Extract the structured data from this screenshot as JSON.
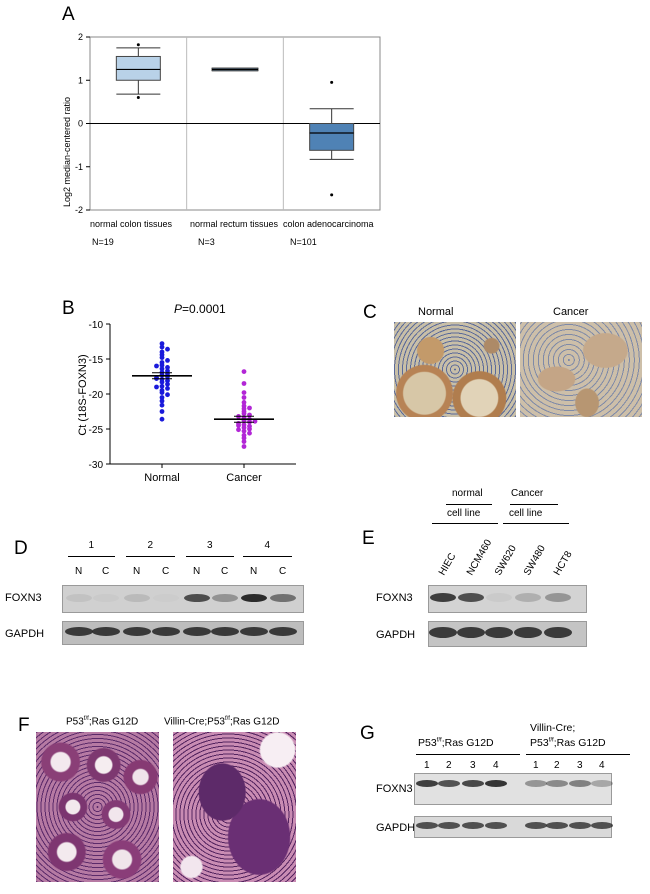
{
  "panels": {
    "A": "A",
    "B": "B",
    "C": "C",
    "D": "D",
    "E": "E",
    "F": "F",
    "G": "G"
  },
  "panel_a": {
    "ylabel": "Log2 median-centered ratio",
    "yticks": [
      "2",
      "1",
      "0",
      "-1",
      "-2"
    ],
    "groups": [
      {
        "label": "normal colon tissues",
        "n": "N=19"
      },
      {
        "label": "normal rectum tissues",
        "n": "N=3"
      },
      {
        "label": "colon adenocarcinoma",
        "n": "N=101"
      }
    ]
  },
  "panel_b": {
    "pvalue_p": "P",
    "pvalue_rest": "=0.0001",
    "ylabel": "Ct (18S-FOXN3)",
    "yticks": [
      "-10",
      "-15",
      "-20",
      "-25",
      "-30"
    ],
    "groups": [
      "Normal",
      "Cancer"
    ]
  },
  "panel_c": {
    "labels": [
      "Normal",
      "Cancer"
    ]
  },
  "panel_d": {
    "patients": [
      "1",
      "2",
      "3",
      "4"
    ],
    "lanes": [
      "N",
      "C",
      "N",
      "C",
      "N",
      "C",
      "N",
      "C"
    ],
    "rows": [
      "FOXN3",
      "GAPDH"
    ]
  },
  "panel_e": {
    "group1": [
      "normal",
      "cell line"
    ],
    "group2": [
      "Cancer",
      "cell line"
    ],
    "lines": [
      "HIEC",
      "NCM460",
      "SW620",
      "SW480",
      "HCT8"
    ],
    "rows": [
      "FOXN3",
      "GAPDH"
    ]
  },
  "panel_f": {
    "left_pre": "P53",
    "left_sup": "f/f",
    "left_post": ";Ras G12D",
    "right_pre": "Villin-Cre;P53",
    "right_sup": "f/f",
    "right_post": ";Ras G12D"
  },
  "panel_g": {
    "left_pre": "P53",
    "left_sup": "f/f",
    "left_post": ";Ras G12D",
    "right_line1": "Villin-Cre;",
    "right_pre": "P53",
    "right_sup": "f/f",
    "right_post": ";Ras G12D",
    "lanes": [
      "1",
      "2",
      "3",
      "4",
      "1",
      "2",
      "3",
      "4"
    ],
    "rows": [
      "FOXN3",
      "GAPDH"
    ]
  },
  "chart_data": [
    {
      "type": "box",
      "ylabel": "Log2 median-centered ratio",
      "ylim": [
        -2,
        2
      ],
      "categories": [
        "normal colon tissues",
        "normal rectum tissues",
        "colon adenocarcinoma"
      ],
      "n": [
        19,
        3,
        101
      ],
      "boxes": [
        {
          "min": 0.68,
          "q1": 1.0,
          "median": 1.25,
          "q3": 1.55,
          "max": 1.75,
          "outliers": [
            1.82,
            0.6
          ]
        },
        {
          "min": 1.22,
          "q1": 1.22,
          "median": 1.25,
          "q3": 1.28,
          "max": 1.28,
          "outliers": []
        },
        {
          "min": -0.83,
          "q1": -0.62,
          "median": -0.22,
          "q3": 0.0,
          "max": 0.34,
          "outliers": [
            0.95,
            -1.65
          ]
        }
      ],
      "reference_line": 0
    },
    {
      "type": "scatter",
      "ylabel": "Ct (18S-FOXN3)",
      "ylim": [
        -30,
        -10
      ],
      "categories": [
        "Normal",
        "Cancer"
      ],
      "series": [
        {
          "name": "Normal",
          "color": "#1a1adb",
          "mean": -17.4,
          "values": [
            -12.8,
            -13.3,
            -13.6,
            -14.0,
            -14.4,
            -14.8,
            -15.2,
            -15.5,
            -15.9,
            -16.2,
            -16.4,
            -16.7,
            -16.9,
            -17.1,
            -17.3,
            -17.5,
            -17.7,
            -17.9,
            -18.1,
            -18.3,
            -18.6,
            -18.9,
            -19.2,
            -19.5,
            -19.8,
            -20.1,
            -20.5,
            -21.0,
            -21.6,
            -22.5,
            -23.6,
            -16.0,
            -17.8,
            -19.0
          ]
        },
        {
          "name": "Cancer",
          "color": "#b226d6",
          "mean": -23.6,
          "values": [
            -16.8,
            -18.5,
            -19.8,
            -20.5,
            -21.2,
            -21.7,
            -22.1,
            -22.5,
            -22.8,
            -23.0,
            -23.2,
            -23.4,
            -23.6,
            -23.8,
            -24.0,
            -24.2,
            -24.4,
            -24.6,
            -24.8,
            -25.0,
            -25.3,
            -25.6,
            -25.9,
            -26.3,
            -26.8,
            -27.5,
            -22.0,
            -23.9,
            -24.5,
            -25.1
          ]
        }
      ]
    }
  ]
}
